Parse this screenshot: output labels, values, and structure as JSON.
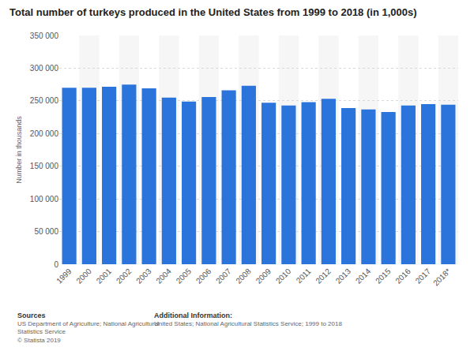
{
  "chart_data": {
    "type": "bar",
    "title": "Total number of turkeys produced in the United States from 1999 to 2018 (in 1,000s)",
    "y_label": "Number in thousands",
    "categories": [
      "1999",
      "2000",
      "2001",
      "2002",
      "2003",
      "2004",
      "2005",
      "2006",
      "2007",
      "2008",
      "2009",
      "2010",
      "2011",
      "2012",
      "2013",
      "2014",
      "2015",
      "2016",
      "2017",
      "2018*"
    ],
    "values": [
      270000,
      270000,
      271700,
      275000,
      269000,
      255000,
      249000,
      256000,
      266000,
      273000,
      247000,
      243000,
      248000,
      253000,
      239000,
      237000,
      233000,
      243000,
      245000,
      244000
    ],
    "color": "#2b74dc",
    "ylim": [
      0,
      350000
    ],
    "yticks": [
      0,
      {
        "value": 50000,
        "label": "50 000"
      },
      {
        "value": 100000,
        "label": "100 000"
      },
      {
        "value": 150000,
        "label": "150 000"
      },
      {
        "value": 200000,
        "label": "200 000"
      },
      {
        "value": 250000,
        "label": "250 000"
      },
      {
        "value": 300000,
        "label": "300 000"
      },
      {
        "value": 350000,
        "label": "350 000"
      }
    ],
    "grid": true,
    "sources": {
      "heading": "Sources",
      "lines": [
        "US Department of Agriculture; National Agricultural",
        "Statistics Service",
        "© Statista 2019"
      ]
    },
    "additional_info": {
      "heading": "Additional Information:",
      "lines": [
        "United States; National Agricultural Statistics Service; 1999 to 2018"
      ]
    }
  }
}
